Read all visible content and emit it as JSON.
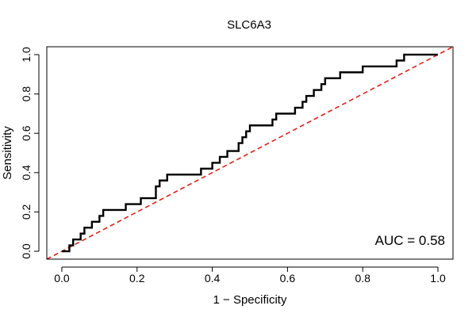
{
  "chart_data": {
    "type": "line",
    "title": "SLC6A3",
    "xlabel": "1 − Specificity",
    "ylabel": "Sensitivity",
    "xlim": [
      -0.04,
      1.04
    ],
    "ylim": [
      -0.04,
      1.04
    ],
    "xticks": [
      0.0,
      0.2,
      0.4,
      0.6,
      0.8,
      1.0
    ],
    "xtick_labels": [
      "0.0",
      "0.2",
      "0.4",
      "0.6",
      "0.8",
      "1.0"
    ],
    "yticks": [
      0.0,
      0.2,
      0.4,
      0.6,
      0.8,
      1.0
    ],
    "ytick_labels": [
      "0.0",
      "0.2",
      "0.4",
      "0.6",
      "0.8",
      "1.0"
    ],
    "grid": false,
    "series": [
      {
        "role": "roc-curve",
        "color": "#000000",
        "style": "solid",
        "points": [
          [
            0.0,
            0.0
          ],
          [
            0.02,
            0.0
          ],
          [
            0.02,
            0.03
          ],
          [
            0.03,
            0.03
          ],
          [
            0.03,
            0.06
          ],
          [
            0.05,
            0.06
          ],
          [
            0.05,
            0.09
          ],
          [
            0.06,
            0.09
          ],
          [
            0.06,
            0.12
          ],
          [
            0.08,
            0.12
          ],
          [
            0.08,
            0.15
          ],
          [
            0.1,
            0.15
          ],
          [
            0.1,
            0.18
          ],
          [
            0.11,
            0.18
          ],
          [
            0.11,
            0.21
          ],
          [
            0.17,
            0.21
          ],
          [
            0.17,
            0.24
          ],
          [
            0.21,
            0.24
          ],
          [
            0.21,
            0.27
          ],
          [
            0.25,
            0.27
          ],
          [
            0.25,
            0.33
          ],
          [
            0.26,
            0.33
          ],
          [
            0.26,
            0.36
          ],
          [
            0.28,
            0.36
          ],
          [
            0.28,
            0.39
          ],
          [
            0.37,
            0.39
          ],
          [
            0.37,
            0.42
          ],
          [
            0.4,
            0.42
          ],
          [
            0.4,
            0.45
          ],
          [
            0.42,
            0.45
          ],
          [
            0.42,
            0.48
          ],
          [
            0.44,
            0.48
          ],
          [
            0.44,
            0.51
          ],
          [
            0.47,
            0.51
          ],
          [
            0.47,
            0.55
          ],
          [
            0.48,
            0.55
          ],
          [
            0.48,
            0.58
          ],
          [
            0.49,
            0.58
          ],
          [
            0.49,
            0.61
          ],
          [
            0.5,
            0.61
          ],
          [
            0.5,
            0.64
          ],
          [
            0.56,
            0.64
          ],
          [
            0.56,
            0.67
          ],
          [
            0.57,
            0.67
          ],
          [
            0.57,
            0.7
          ],
          [
            0.62,
            0.7
          ],
          [
            0.62,
            0.73
          ],
          [
            0.64,
            0.73
          ],
          [
            0.64,
            0.76
          ],
          [
            0.65,
            0.76
          ],
          [
            0.65,
            0.79
          ],
          [
            0.67,
            0.79
          ],
          [
            0.67,
            0.82
          ],
          [
            0.69,
            0.82
          ],
          [
            0.69,
            0.85
          ],
          [
            0.7,
            0.85
          ],
          [
            0.7,
            0.88
          ],
          [
            0.74,
            0.88
          ],
          [
            0.74,
            0.91
          ],
          [
            0.8,
            0.91
          ],
          [
            0.8,
            0.94
          ],
          [
            0.89,
            0.94
          ],
          [
            0.89,
            0.97
          ],
          [
            0.91,
            0.97
          ],
          [
            0.91,
            1.0
          ],
          [
            1.0,
            1.0
          ]
        ]
      },
      {
        "role": "diagonal-reference",
        "color": "#e8201a",
        "style": "dashed",
        "points": [
          [
            -0.04,
            -0.04
          ],
          [
            1.04,
            1.04
          ]
        ]
      }
    ],
    "annotations": [
      {
        "text": "AUC = 0.58",
        "position": "bottom-right"
      }
    ]
  }
}
